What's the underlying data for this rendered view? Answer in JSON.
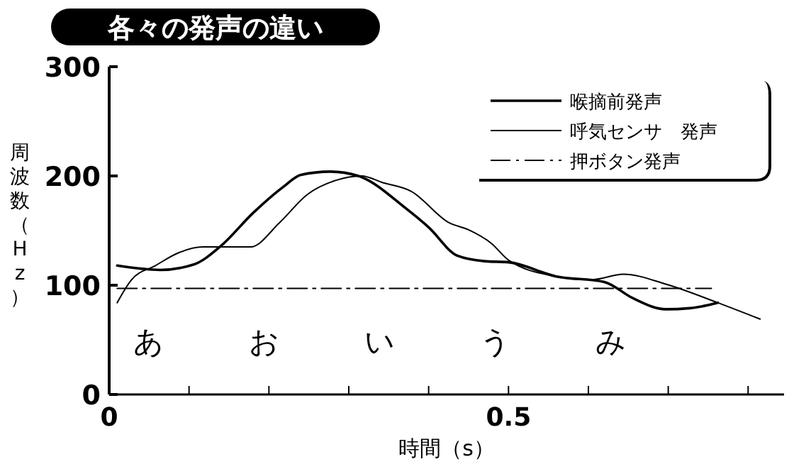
{
  "chart_data": {
    "type": "line",
    "title": "各々の発声の違い",
    "xlabel": "時間（s）",
    "ylabel": "周波数（Hz）",
    "xlim": [
      0,
      0.845
    ],
    "ylim": [
      0,
      300
    ],
    "xticks": [
      0,
      {
        "value": 0.1,
        "label": null
      },
      {
        "value": 0.2,
        "label": null
      },
      {
        "value": 0.3,
        "label": null
      },
      {
        "value": 0.4,
        "label": null
      },
      0.5,
      {
        "value": 0.6,
        "label": null
      },
      {
        "value": 0.7,
        "label": null
      },
      {
        "value": 0.8,
        "label": null
      }
    ],
    "yticks": [
      0,
      100,
      200,
      300
    ],
    "legend": "top right",
    "grid": false,
    "series": [
      {
        "name": "喉摘前発声",
        "color": "#000000",
        "line_style": "solid",
        "x": [
          0.01,
          0.064,
          0.106,
          0.14,
          0.18,
          0.218,
          0.24,
          0.277,
          0.312,
          0.372,
          0.4,
          0.436,
          0.47,
          0.5,
          0.56,
          0.62,
          0.656,
          0.697,
          0.727,
          0.762
        ],
        "values": [
          118,
          114,
          119,
          136,
          166,
          190,
          201,
          204,
          200,
          170,
          153,
          127,
          122,
          121,
          108,
          103,
          88,
          78,
          79,
          84
        ]
      },
      {
        "name": "呼気センサ　発声",
        "color": "#000000",
        "line_style": "solid",
        "x": [
          0.01,
          0.028,
          0.058,
          0.088,
          0.117,
          0.177,
          0.213,
          0.248,
          0.284,
          0.316,
          0.342,
          0.378,
          0.426,
          0.449,
          0.479,
          0.5,
          0.56,
          0.603,
          0.644,
          0.697,
          0.762,
          0.815
        ],
        "values": [
          84,
          105,
          118,
          130,
          135,
          135,
          157,
          183,
          196,
          200,
          194,
          186,
          157,
          151,
          138,
          123,
          108,
          105,
          110,
          101,
          84,
          69
        ]
      },
      {
        "name": "押ボタン発声",
        "color": "#000000",
        "line_style": "dashed",
        "x": [
          0.01,
          0.754
        ],
        "values": [
          97,
          97
        ]
      }
    ],
    "annotations": [
      "あ",
      "お",
      "い",
      "う",
      "み"
    ]
  }
}
